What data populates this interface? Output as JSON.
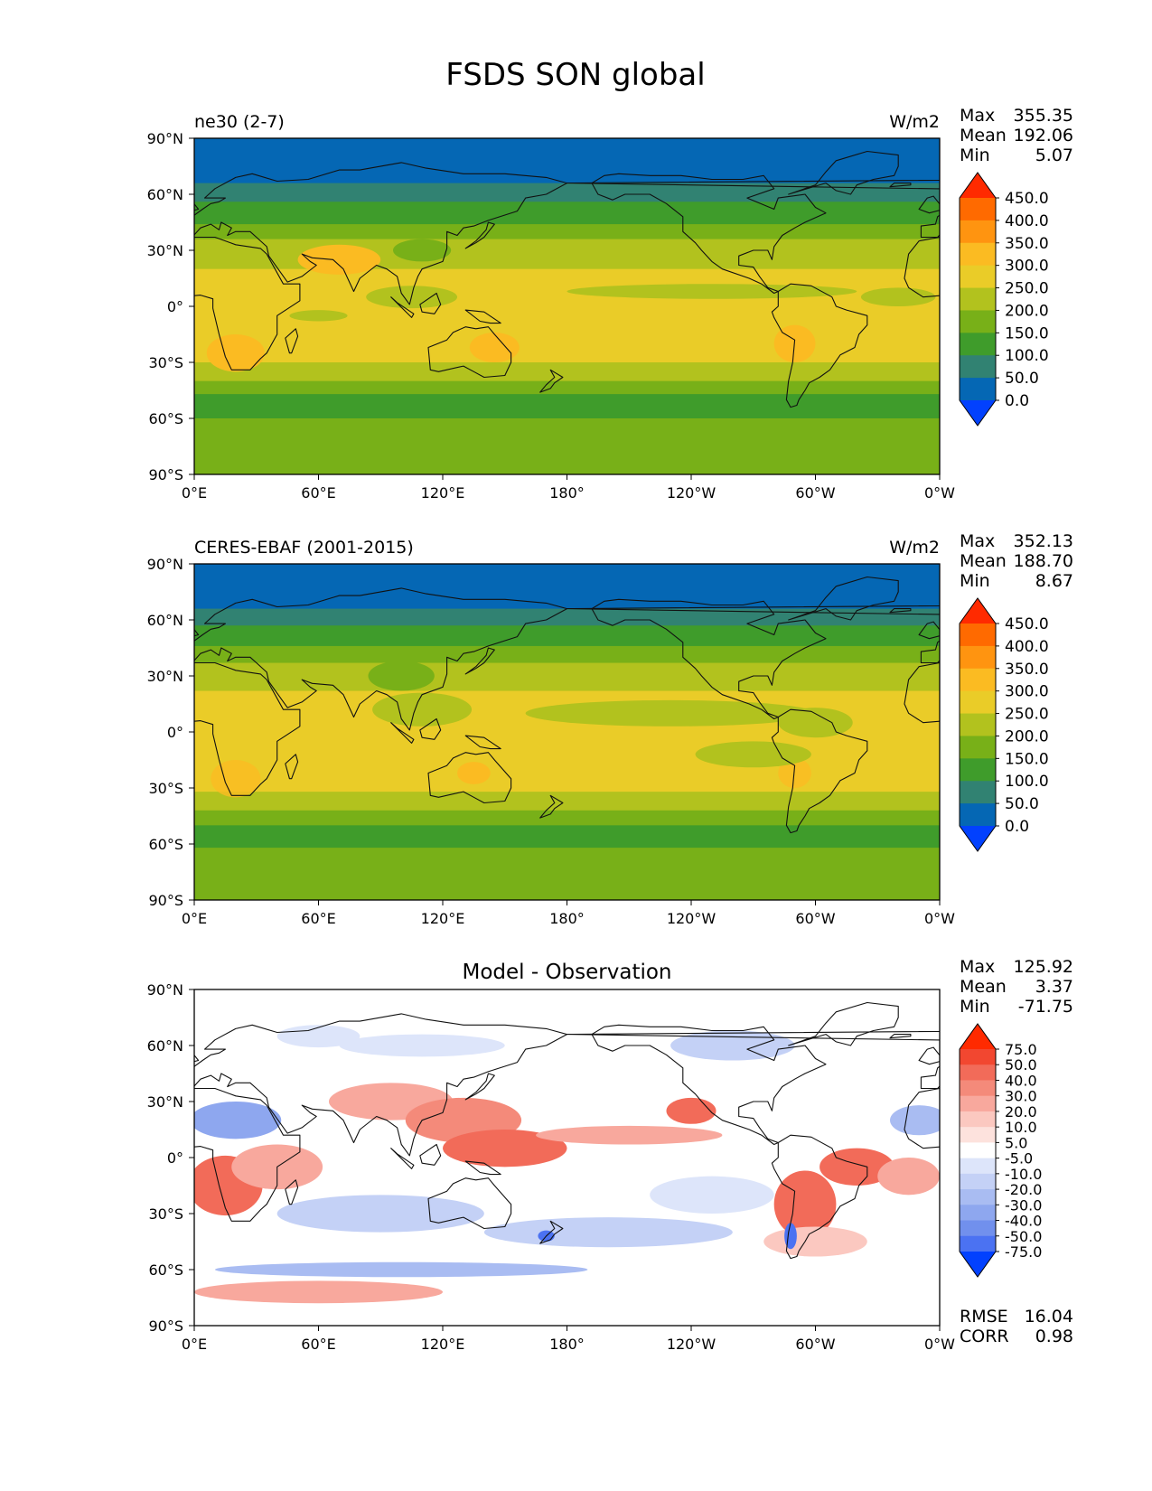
{
  "figure": {
    "title": "FSDS SON global"
  },
  "chart_data": [
    {
      "type": "heatmap",
      "panel": "test",
      "title_left": "ne30 (2-7)",
      "title_center": "",
      "units": "W/m2",
      "stats": [
        {
          "label": "Max",
          "value": "355.35"
        },
        {
          "label": "Mean",
          "value": "192.06"
        },
        {
          "label": "Min",
          "value": "5.07"
        }
      ],
      "xlim": [
        0,
        360
      ],
      "ylim": [
        -90,
        90
      ],
      "x_ticks": [
        "0°E",
        "60°E",
        "120°E",
        "180°",
        "120°W",
        "60°W",
        "0°W"
      ],
      "y_ticks": [
        "90°N",
        "60°N",
        "30°N",
        "0°",
        "30°S",
        "60°S",
        "90°S"
      ],
      "colorbar": {
        "levels": [
          "450.0",
          "400.0",
          "350.0",
          "300.0",
          "250.0",
          "200.0",
          "150.0",
          "100.0",
          "50.0",
          "0.0"
        ],
        "colors": [
          "#ff2a00",
          "#ff6a00",
          "#ff9410",
          "#fbbb22",
          "#eacc28",
          "#b2c21e",
          "#78b018",
          "#3f9c2b",
          "#318272",
          "#0567b4",
          "#0241fe"
        ],
        "extend": "both"
      }
    },
    {
      "type": "heatmap",
      "panel": "reference",
      "title_left": "CERES-EBAF (2001-2015)",
      "title_center": "",
      "units": "W/m2",
      "stats": [
        {
          "label": "Max",
          "value": "352.13"
        },
        {
          "label": "Mean",
          "value": "188.70"
        },
        {
          "label": "Min",
          "value": "8.67"
        }
      ],
      "xlim": [
        0,
        360
      ],
      "ylim": [
        -90,
        90
      ],
      "x_ticks": [
        "0°E",
        "60°E",
        "120°E",
        "180°",
        "120°W",
        "60°W",
        "0°W"
      ],
      "y_ticks": [
        "90°N",
        "60°N",
        "30°N",
        "0°",
        "30°S",
        "60°S",
        "90°S"
      ],
      "colorbar": {
        "levels": [
          "450.0",
          "400.0",
          "350.0",
          "300.0",
          "250.0",
          "200.0",
          "150.0",
          "100.0",
          "50.0",
          "0.0"
        ],
        "colors": [
          "#ff2a00",
          "#ff6a00",
          "#ff9410",
          "#fbbb22",
          "#eacc28",
          "#b2c21e",
          "#78b018",
          "#3f9c2b",
          "#318272",
          "#0567b4",
          "#0241fe"
        ],
        "extend": "both"
      }
    },
    {
      "type": "heatmap",
      "panel": "difference",
      "title_left": "",
      "title_center": "Model - Observation",
      "units": "",
      "stats": [
        {
          "label": "Max",
          "value": "125.92"
        },
        {
          "label": "Mean",
          "value": "3.37"
        },
        {
          "label": "Min",
          "value": "-71.75"
        }
      ],
      "metrics": [
        {
          "label": "RMSE",
          "value": "16.04"
        },
        {
          "label": "CORR",
          "value": "0.98"
        }
      ],
      "xlim": [
        0,
        360
      ],
      "ylim": [
        -90,
        90
      ],
      "x_ticks": [
        "0°E",
        "60°E",
        "120°E",
        "180°",
        "120°W",
        "60°W",
        "0°W"
      ],
      "y_ticks": [
        "90°N",
        "60°N",
        "30°N",
        "0°",
        "30°S",
        "60°S",
        "90°S"
      ],
      "colorbar": {
        "levels": [
          "75.0",
          "50.0",
          "40.0",
          "30.0",
          "20.0",
          "10.0",
          "5.0",
          "-5.0",
          "-10.0",
          "-20.0",
          "-30.0",
          "-40.0",
          "-50.0",
          "-75.0"
        ],
        "colors": [
          "#ff2a00",
          "#f24730",
          "#f26b59",
          "#f48a7a",
          "#f8a89d",
          "#fbc8c0",
          "#fde2dd",
          "#ffffff",
          "#dde5fa",
          "#c4d1f6",
          "#a9bcf2",
          "#8ea7ef",
          "#7190ed",
          "#4b72f2",
          "#0241fe"
        ],
        "extend": "both"
      }
    }
  ]
}
